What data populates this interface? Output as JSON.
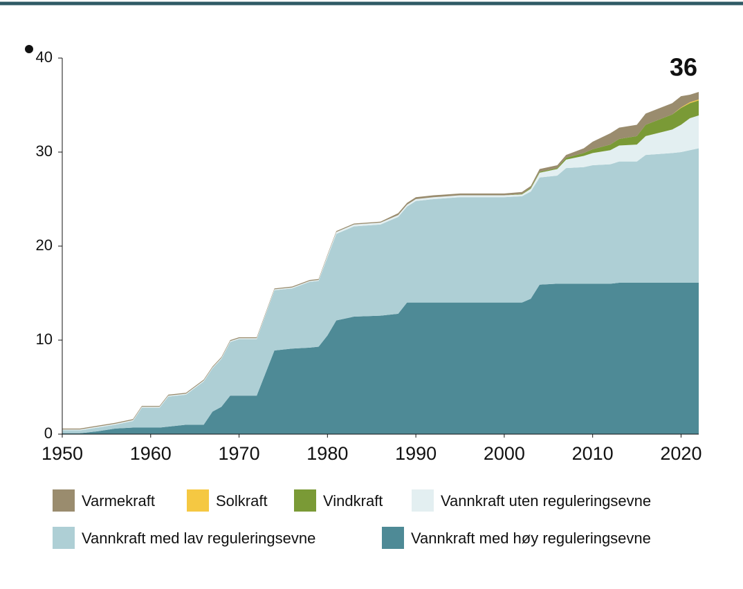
{
  "chart_data": {
    "type": "area",
    "stacked": true,
    "annotation": "36",
    "x": [
      1950,
      1952,
      1954,
      1956,
      1958,
      1959,
      1961,
      1962,
      1964,
      1966,
      1967,
      1968,
      1969,
      1970,
      1972,
      1974,
      1976,
      1978,
      1979,
      1980,
      1981,
      1983,
      1986,
      1988,
      1989,
      1990,
      1992,
      1995,
      2000,
      2002,
      2003,
      2004,
      2006,
      2007,
      2009,
      2010,
      2012,
      2013,
      2015,
      2016,
      2019,
      2020,
      2021,
      2022
    ],
    "xlim": [
      1950,
      2022
    ],
    "xticks": [
      1950,
      1960,
      1970,
      1980,
      1990,
      2000,
      2010,
      2020
    ],
    "ylim": [
      0,
      40
    ],
    "yticks": [
      0,
      10,
      20,
      30,
      40
    ],
    "series": [
      {
        "name": "Varmekraft",
        "color": "#9a8c6e",
        "values": [
          0.1,
          0.1,
          0.1,
          0.1,
          0.1,
          0.1,
          0.1,
          0.1,
          0.1,
          0.1,
          0.1,
          0.1,
          0.1,
          0.1,
          0.1,
          0.1,
          0.1,
          0.1,
          0.1,
          0.1,
          0.1,
          0.1,
          0.1,
          0.2,
          0.2,
          0.2,
          0.2,
          0.2,
          0.2,
          0.2,
          0.2,
          0.3,
          0.3,
          0.3,
          0.5,
          0.8,
          1.2,
          1.2,
          1.2,
          1.2,
          1.2,
          1.2,
          0.8,
          0.8
        ]
      },
      {
        "name": "Solkraft",
        "color": "#f5c842",
        "values": [
          0,
          0,
          0,
          0,
          0,
          0,
          0,
          0,
          0,
          0,
          0,
          0,
          0,
          0,
          0,
          0,
          0,
          0,
          0,
          0,
          0,
          0,
          0,
          0,
          0,
          0,
          0,
          0,
          0,
          0,
          0,
          0,
          0,
          0,
          0,
          0,
          0,
          0,
          0,
          0,
          0,
          0.05,
          0.1,
          0.1
        ]
      },
      {
        "name": "Vindkraft",
        "color": "#7a9a36",
        "values": [
          0,
          0,
          0,
          0,
          0,
          0,
          0,
          0,
          0,
          0,
          0,
          0,
          0,
          0,
          0,
          0,
          0,
          0,
          0,
          0,
          0,
          0,
          0,
          0,
          0,
          0,
          0,
          0,
          0,
          0.05,
          0.1,
          0.1,
          0.1,
          0.2,
          0.3,
          0.4,
          0.6,
          0.7,
          0.9,
          1.2,
          1.6,
          1.8,
          1.6,
          1.6
        ]
      },
      {
        "name": "Vannkraft uten reguleringsevne",
        "color": "#e3eff1",
        "values": [
          0.1,
          0.1,
          0.1,
          0.1,
          0.1,
          0.1,
          0.1,
          0.1,
          0.1,
          0.1,
          0.1,
          0.1,
          0.1,
          0.1,
          0.1,
          0.1,
          0.1,
          0.1,
          0.1,
          0.2,
          0.2,
          0.2,
          0.2,
          0.2,
          0.2,
          0.2,
          0.2,
          0.2,
          0.2,
          0.2,
          0.3,
          0.5,
          0.7,
          0.9,
          1.2,
          1.3,
          1.5,
          1.7,
          1.8,
          2.0,
          2.5,
          2.9,
          3.4,
          3.5
        ]
      },
      {
        "name": "Vannkraft med lav reguleringsevne",
        "color": "#aecfd5",
        "values": [
          0.3,
          0.3,
          0.4,
          0.4,
          0.7,
          2.1,
          2.1,
          3.2,
          3.2,
          4.6,
          4.6,
          5.1,
          5.7,
          6.0,
          6.0,
          6.4,
          6.4,
          7.0,
          7.0,
          8.3,
          9.2,
          9.6,
          9.7,
          10.3,
          10.2,
          10.8,
          11.0,
          11.2,
          11.2,
          11.3,
          11.4,
          11.4,
          11.5,
          12.3,
          12.4,
          12.6,
          12.7,
          12.9,
          12.9,
          13.6,
          13.8,
          13.9,
          14.1,
          14.3
        ]
      },
      {
        "name": "Vannkraft med høy reguleringsevne",
        "color": "#4e8a96",
        "values": [
          0.1,
          0.1,
          0.3,
          0.6,
          0.7,
          0.7,
          0.7,
          0.8,
          1.0,
          1.0,
          2.4,
          2.9,
          4.1,
          4.1,
          4.1,
          8.9,
          9.1,
          9.2,
          9.3,
          10.5,
          12.1,
          12.5,
          12.6,
          12.8,
          14.0,
          14.0,
          14.0,
          14.0,
          14.0,
          14.0,
          14.4,
          15.9,
          16.0,
          16.0,
          16.0,
          16.0,
          16.0,
          16.1,
          16.1,
          16.1,
          16.1,
          16.1,
          16.1,
          16.1
        ]
      }
    ]
  }
}
